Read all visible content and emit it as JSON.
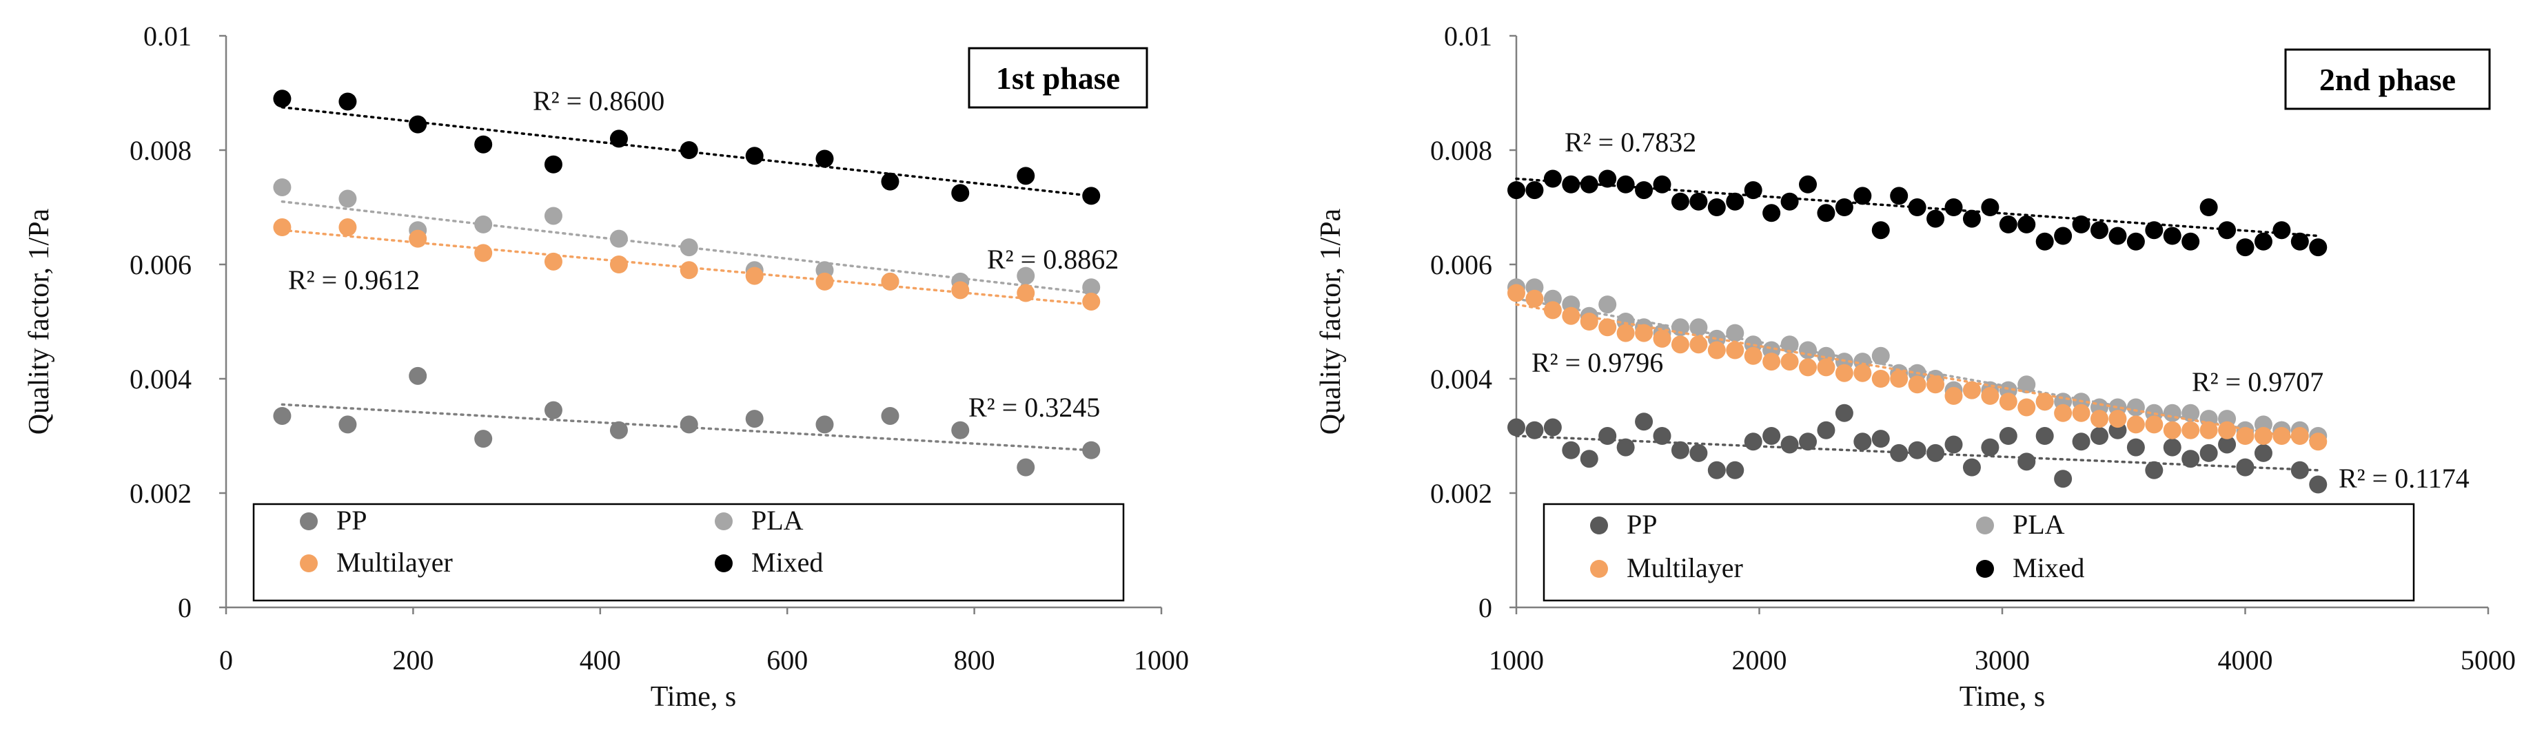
{
  "colors": {
    "PP": "#7f7f7f",
    "PLA": "#a6a6a6",
    "Multilayer": "#f4a261",
    "Mixed": "#000000",
    "PP_panel2": "#595959"
  },
  "chart_data": [
    {
      "type": "scatter",
      "panel": "1st phase",
      "title": "1st phase",
      "xlabel": "Time, s",
      "ylabel": "Quality factor, 1/Pa",
      "xlim": [
        0,
        1000
      ],
      "ylim": [
        0,
        0.01
      ],
      "x_ticks": [
        "0",
        "200",
        "400",
        "600",
        "800",
        "1000"
      ],
      "y_ticks": [
        "0",
        "0.002",
        "0.004",
        "0.006",
        "0.008",
        "0.01"
      ],
      "legend": [
        "PP",
        "PLA",
        "Multilayer",
        "Mixed"
      ],
      "series": [
        {
          "name": "PP",
          "x": [
            60,
            130,
            205,
            275,
            350,
            420,
            495,
            565,
            640,
            710,
            785,
            855,
            925
          ],
          "y": [
            0.00335,
            0.0032,
            0.00405,
            0.00295,
            0.00345,
            0.0031,
            0.0032,
            0.0033,
            0.0032,
            0.00335,
            0.0031,
            0.00245,
            0.00275
          ],
          "trend": [
            0.00355,
            0.00275
          ],
          "r2": "R² = 0.3245"
        },
        {
          "name": "PLA",
          "x": [
            60,
            130,
            205,
            275,
            350,
            420,
            495,
            565,
            640,
            710,
            785,
            855,
            925
          ],
          "y": [
            0.00735,
            0.00715,
            0.0066,
            0.0067,
            0.00685,
            0.00645,
            0.0063,
            0.0059,
            0.0059,
            0.0057,
            0.0057,
            0.0058,
            0.0056
          ],
          "trend": [
            0.0071,
            0.0055
          ],
          "r2": "R² = 0.8862"
        },
        {
          "name": "Multilayer",
          "x": [
            60,
            130,
            205,
            275,
            350,
            420,
            495,
            565,
            640,
            710,
            785,
            855,
            925
          ],
          "y": [
            0.00665,
            0.00665,
            0.00645,
            0.0062,
            0.00605,
            0.006,
            0.0059,
            0.0058,
            0.0057,
            0.0057,
            0.00555,
            0.0055,
            0.00535
          ],
          "trend": [
            0.0066,
            0.0053
          ],
          "r2": "R² = 0.9612"
        },
        {
          "name": "Mixed",
          "x": [
            60,
            130,
            205,
            275,
            350,
            420,
            495,
            565,
            640,
            710,
            785,
            855,
            925
          ],
          "y": [
            0.0089,
            0.00885,
            0.00845,
            0.0081,
            0.00775,
            0.0082,
            0.008,
            0.0079,
            0.00785,
            0.00745,
            0.00725,
            0.00755,
            0.0072
          ],
          "trend": [
            0.00875,
            0.0072
          ],
          "r2": "R² = 0.8600"
        }
      ]
    },
    {
      "type": "scatter",
      "panel": "2nd phase",
      "title": "2nd phase",
      "xlabel": "Time, s",
      "ylabel": "Quality factor, 1/Pa",
      "xlim": [
        1000,
        5000
      ],
      "ylim": [
        0,
        0.01
      ],
      "x_ticks": [
        "1000",
        "2000",
        "3000",
        "4000",
        "5000"
      ],
      "y_ticks": [
        "0",
        "0.002",
        "0.004",
        "0.006",
        "0.008",
        "0.01"
      ],
      "legend": [
        "PP",
        "PLA",
        "Multilayer",
        "Mixed"
      ],
      "series": [
        {
          "name": "PP",
          "x": [
            1000,
            1075,
            1150,
            1225,
            1300,
            1375,
            1450,
            1525,
            1600,
            1675,
            1750,
            1825,
            1900,
            1975,
            2050,
            2125,
            2200,
            2275,
            2350,
            2425,
            2500,
            2575,
            2650,
            2725,
            2800,
            2875,
            2950,
            3025,
            3100,
            3175,
            3250,
            3325,
            3400,
            3475,
            3550,
            3625,
            3700,
            3775,
            3850,
            3925,
            4000,
            4075,
            4150,
            4225,
            4300
          ],
          "y": [
            0.00315,
            0.0031,
            0.00315,
            0.00275,
            0.0026,
            0.003,
            0.0028,
            0.00325,
            0.003,
            0.00275,
            0.0027,
            0.0024,
            0.0024,
            0.0029,
            0.003,
            0.00285,
            0.0029,
            0.0031,
            0.0034,
            0.0029,
            0.00295,
            0.0027,
            0.00275,
            0.0027,
            0.00285,
            0.00245,
            0.0028,
            0.003,
            0.00255,
            0.003,
            0.00225,
            0.0029,
            0.003,
            0.0031,
            0.0028,
            0.0024,
            0.0028,
            0.0026,
            0.0027,
            0.00285,
            0.00245,
            0.0027,
            0.0031,
            0.0024,
            0.00215
          ],
          "trend": [
            0.003,
            0.0024
          ],
          "r2": "R² = 0.1174"
        },
        {
          "name": "PLA",
          "x": [
            1000,
            1075,
            1150,
            1225,
            1300,
            1375,
            1450,
            1525,
            1600,
            1675,
            1750,
            1825,
            1900,
            1975,
            2050,
            2125,
            2200,
            2275,
            2350,
            2425,
            2500,
            2575,
            2650,
            2725,
            2800,
            2875,
            2950,
            3025,
            3100,
            3175,
            3250,
            3325,
            3400,
            3475,
            3550,
            3625,
            3700,
            3775,
            3850,
            3925,
            4000,
            4075,
            4150,
            4225,
            4300
          ],
          "y": [
            0.0056,
            0.0056,
            0.0054,
            0.0053,
            0.0051,
            0.0053,
            0.005,
            0.0049,
            0.0048,
            0.0049,
            0.0049,
            0.0047,
            0.0048,
            0.0046,
            0.0045,
            0.0046,
            0.0045,
            0.0044,
            0.0043,
            0.0043,
            0.0044,
            0.0041,
            0.0041,
            0.004,
            0.0038,
            0.0038,
            0.0038,
            0.0038,
            0.0039,
            0.0036,
            0.0036,
            0.0036,
            0.0035,
            0.0035,
            0.0035,
            0.0034,
            0.0034,
            0.0034,
            0.0033,
            0.0033,
            0.0031,
            0.0032,
            0.0031,
            0.0031,
            0.003
          ],
          "trend": [
            0.0054,
            0.0029
          ],
          "r2": "R² = 0.9707"
        },
        {
          "name": "Multilayer",
          "x": [
            1000,
            1075,
            1150,
            1225,
            1300,
            1375,
            1450,
            1525,
            1600,
            1675,
            1750,
            1825,
            1900,
            1975,
            2050,
            2125,
            2200,
            2275,
            2350,
            2425,
            2500,
            2575,
            2650,
            2725,
            2800,
            2875,
            2950,
            3025,
            3100,
            3175,
            3250,
            3325,
            3400,
            3475,
            3550,
            3625,
            3700,
            3775,
            3850,
            3925,
            4000,
            4075,
            4150,
            4225,
            4300
          ],
          "y": [
            0.0055,
            0.0054,
            0.0052,
            0.0051,
            0.005,
            0.0049,
            0.0048,
            0.0048,
            0.0047,
            0.0046,
            0.0046,
            0.0045,
            0.0045,
            0.0044,
            0.0043,
            0.0043,
            0.0042,
            0.0042,
            0.0041,
            0.0041,
            0.004,
            0.004,
            0.0039,
            0.0039,
            0.0037,
            0.0038,
            0.0037,
            0.0036,
            0.0035,
            0.0036,
            0.0034,
            0.0034,
            0.0033,
            0.0033,
            0.0032,
            0.0032,
            0.0031,
            0.0031,
            0.0031,
            0.0031,
            0.003,
            0.003,
            0.003,
            0.003,
            0.0029
          ],
          "trend": [
            0.0053,
            0.0029
          ],
          "r2": "R² = 0.9796"
        },
        {
          "name": "Mixed",
          "x": [
            1000,
            1075,
            1150,
            1225,
            1300,
            1375,
            1450,
            1525,
            1600,
            1675,
            1750,
            1825,
            1900,
            1975,
            2050,
            2125,
            2200,
            2275,
            2350,
            2425,
            2500,
            2575,
            2650,
            2725,
            2800,
            2875,
            2950,
            3025,
            3100,
            3175,
            3250,
            3325,
            3400,
            3475,
            3550,
            3625,
            3700,
            3775,
            3850,
            3925,
            4000,
            4075,
            4150,
            4225,
            4300
          ],
          "y": [
            0.0073,
            0.0073,
            0.0075,
            0.0074,
            0.0074,
            0.0075,
            0.0074,
            0.0073,
            0.0074,
            0.0071,
            0.0071,
            0.007,
            0.0071,
            0.0073,
            0.0069,
            0.0071,
            0.0074,
            0.0069,
            0.007,
            0.0072,
            0.0066,
            0.0072,
            0.007,
            0.0068,
            0.007,
            0.0068,
            0.007,
            0.0067,
            0.0067,
            0.0064,
            0.0065,
            0.0067,
            0.0066,
            0.0065,
            0.0064,
            0.0066,
            0.0065,
            0.0064,
            0.007,
            0.0066,
            0.0063,
            0.0064,
            0.0066,
            0.0064,
            0.0063
          ],
          "trend": [
            0.0075,
            0.0065
          ],
          "r2": "R² = 0.7832"
        }
      ]
    }
  ]
}
